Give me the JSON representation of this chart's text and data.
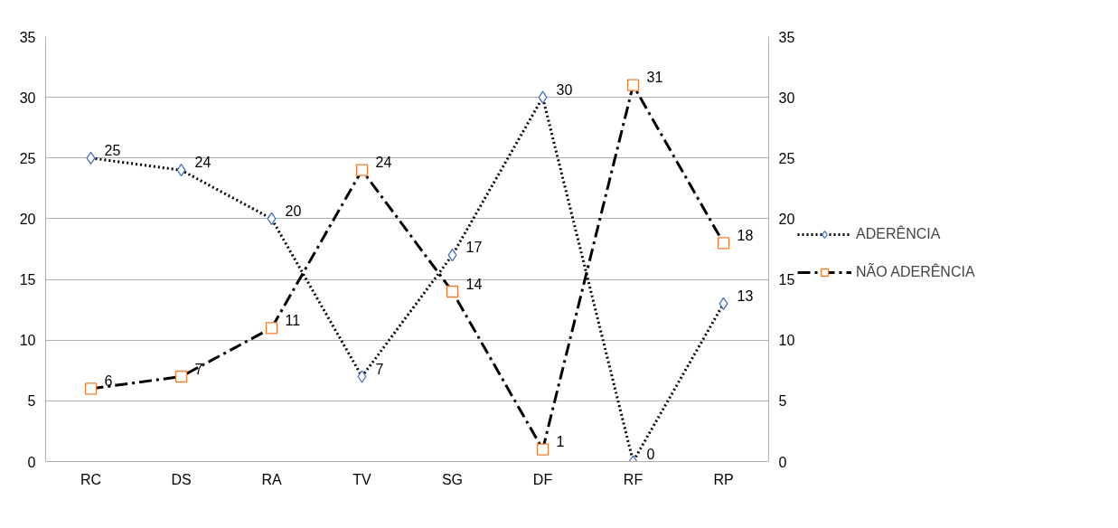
{
  "chart_data": {
    "type": "line",
    "categories": [
      "RC",
      "DS",
      "RA",
      "TV",
      "SG",
      "DF",
      "RF",
      "RP"
    ],
    "series": [
      {
        "name": "ADERÊNCIA",
        "color": "#4472c4",
        "marker": "diamond",
        "line_style": "dotted",
        "values": [
          25,
          24,
          20,
          7,
          17,
          30,
          0,
          13
        ]
      },
      {
        "name": "NÃO ADERÊNCIA",
        "color": "#ed7d31",
        "marker": "square",
        "line_style": "dashed",
        "values": [
          6,
          7,
          11,
          24,
          14,
          1,
          31,
          18
        ]
      }
    ],
    "ylim": [
      0,
      35
    ],
    "yticks": [
      0,
      5,
      10,
      15,
      20,
      25,
      30,
      35
    ],
    "y2lim": [
      0,
      35
    ],
    "y2ticks": [
      0,
      5,
      10,
      15,
      20,
      25,
      30,
      35
    ],
    "grid": "y",
    "legend": "right",
    "data_labels": true
  }
}
